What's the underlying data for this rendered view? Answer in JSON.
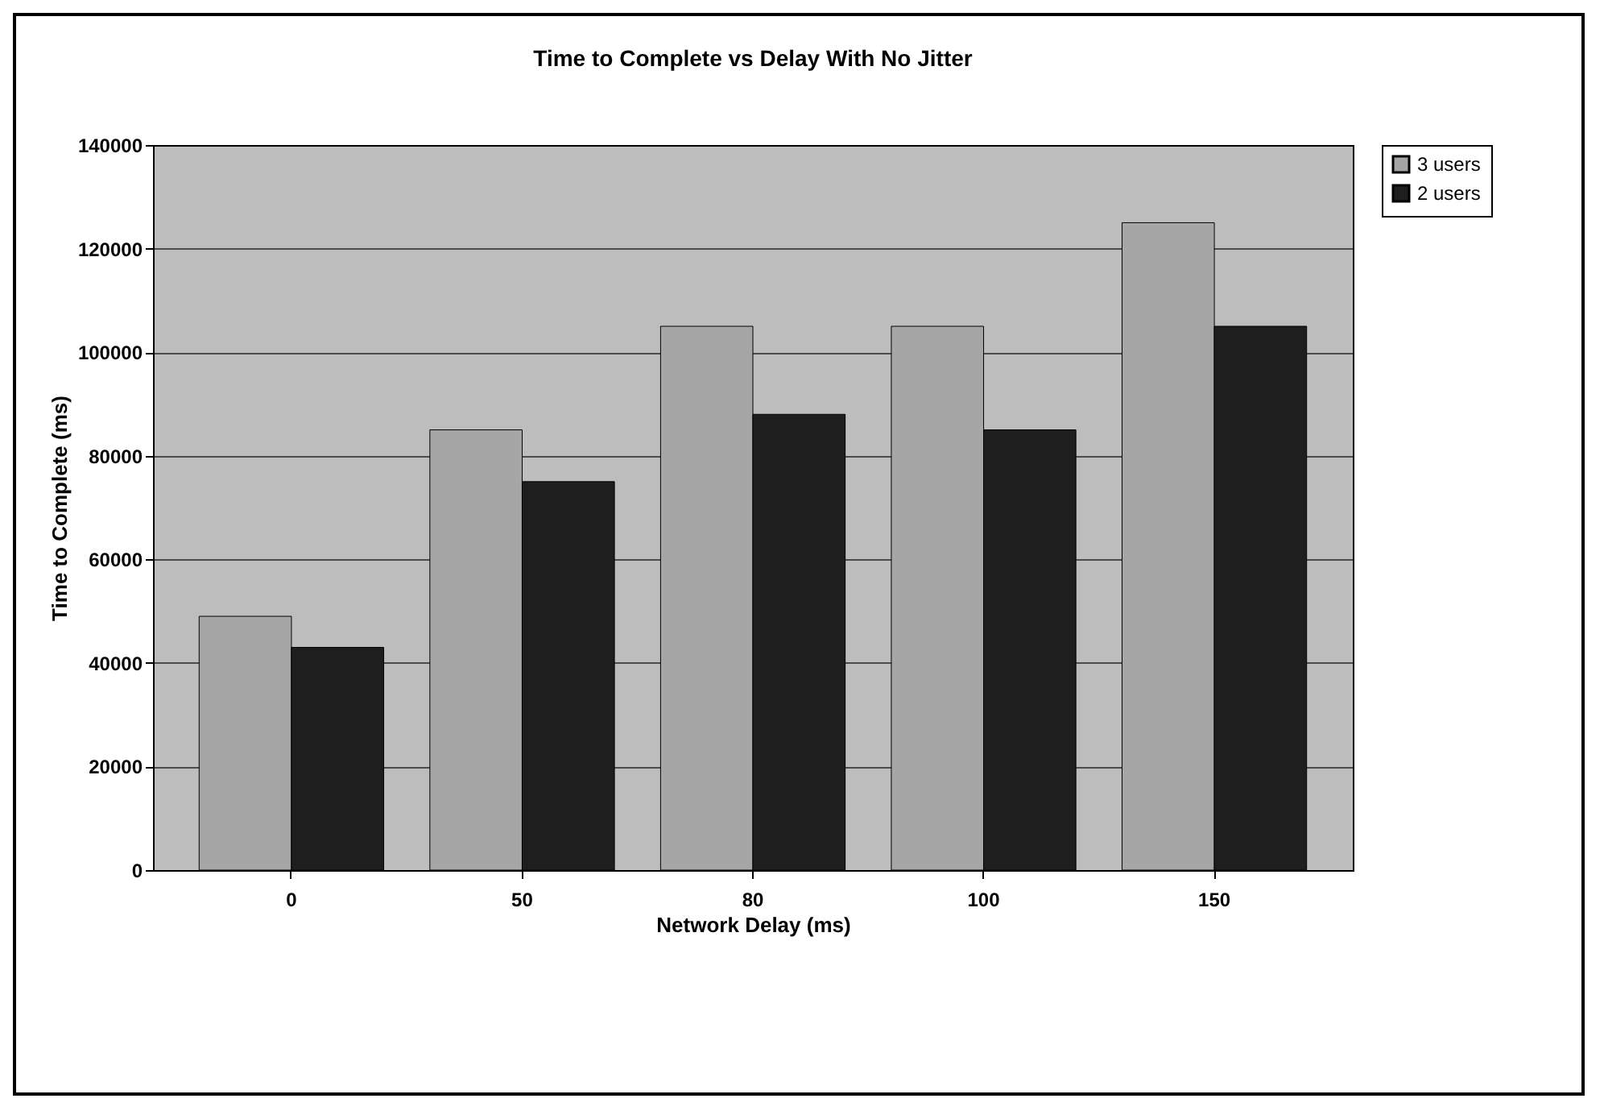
{
  "chart_data": {
    "type": "bar",
    "title": "Time to Complete vs Delay With No Jitter",
    "xlabel": "Network Delay (ms)",
    "ylabel": "Time to Complete (ms)",
    "categories": [
      "0",
      "50",
      "80",
      "100",
      "150"
    ],
    "series": [
      {
        "name": "3 users",
        "color": "#a6a6a6",
        "values": [
          49000,
          85000,
          105000,
          105000,
          125000
        ]
      },
      {
        "name": "2 users",
        "color": "#1e1e1e",
        "values": [
          43000,
          75000,
          88000,
          85000,
          105000
        ]
      }
    ],
    "ylim": [
      0,
      140000
    ],
    "yticks": [
      0,
      20000,
      40000,
      60000,
      80000,
      100000,
      120000,
      140000
    ],
    "grid": "y",
    "legend": "right"
  }
}
